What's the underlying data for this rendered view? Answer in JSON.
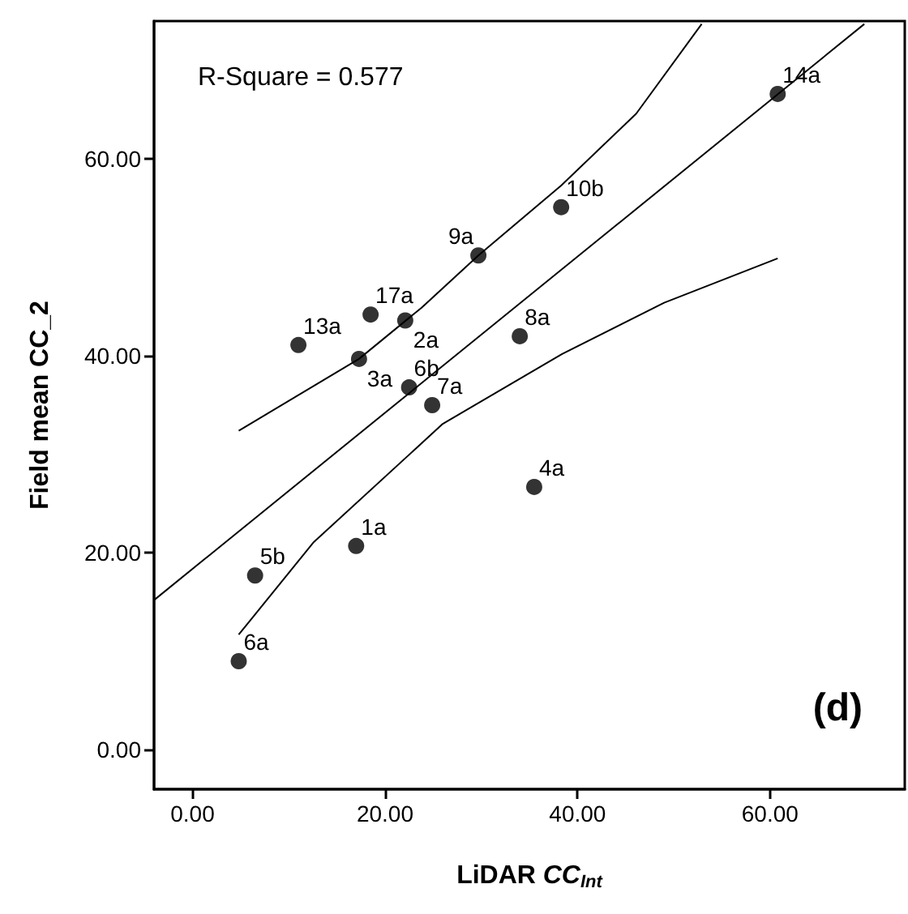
{
  "chart_data": {
    "type": "scatter",
    "xlabel": "LiDAR CC$_{Int}$",
    "ylabel": "Field mean CC_2",
    "xlim": [
      -4,
      74
    ],
    "ylim": [
      -4,
      74
    ],
    "xticks": [
      {
        "value": 0,
        "label": "0.00"
      },
      {
        "value": 20,
        "label": "20.00"
      },
      {
        "value": 40,
        "label": "40.00"
      },
      {
        "value": 60,
        "label": "60.00"
      }
    ],
    "yticks": [
      {
        "value": 0,
        "label": "0.00"
      },
      {
        "value": 20,
        "label": "20.00"
      },
      {
        "value": 40,
        "label": "40.00"
      },
      {
        "value": 60,
        "label": "60.00"
      }
    ],
    "grid": false,
    "marker": "circle",
    "series": [
      {
        "color": "#000000",
        "x": [
          60.8,
          38.3,
          29.7,
          18.5,
          22.1,
          11.0,
          17.3,
          22.5,
          24.9,
          34.0,
          35.5,
          17.0,
          6.5,
          4.8
        ],
        "values": [
          66.6,
          55.1,
          50.2,
          44.2,
          43.6,
          41.1,
          39.7,
          36.8,
          35.0,
          42.0,
          26.7,
          20.7,
          17.7,
          9.0
        ]
      },
      {
        "type": "line",
        "color": "#000000",
        "line_style": "solid",
        "marker": "none",
        "x": [
          -4,
          69.8
        ],
        "values": [
          15.2,
          73.7
        ]
      },
      {
        "type": "line",
        "color": "#000000",
        "line_style": "solid",
        "marker": "none",
        "x": [
          4.8,
          17.3,
          23.8,
          29.7,
          38.3,
          46.1,
          52.9
        ],
        "values": [
          32.4,
          39.7,
          44.9,
          50.2,
          57.3,
          64.6,
          73.7
        ]
      },
      {
        "type": "line",
        "color": "#000000",
        "line_style": "solid",
        "marker": "none",
        "x": [
          4.8,
          12.6,
          26.0,
          38.4,
          49.0,
          60.8
        ],
        "values": [
          11.7,
          21.1,
          33.1,
          40.2,
          45.4,
          49.9
        ]
      }
    ],
    "annotations": [
      "R-Square = 0.577",
      "(d)",
      {
        "text": "14a",
        "x": 60.8,
        "y": 66.6
      },
      {
        "text": "10b",
        "x": 38.3,
        "y": 55.1
      },
      {
        "text": "9a",
        "x": 29.7,
        "y": 50.2
      },
      {
        "text": "17a",
        "x": 18.5,
        "y": 44.2
      },
      {
        "text": "2a",
        "x": 22.1,
        "y": 43.6
      },
      {
        "text": "13a",
        "x": 11.0,
        "y": 41.1
      },
      {
        "text": "3a",
        "x": 17.3,
        "y": 39.7
      },
      {
        "text": "6b",
        "x": 22.5,
        "y": 36.8
      },
      {
        "text": "7a",
        "x": 24.9,
        "y": 35.0
      },
      {
        "text": "8a",
        "x": 34.0,
        "y": 42.0
      },
      {
        "text": "4a",
        "x": 35.5,
        "y": 26.7
      },
      {
        "text": "1a",
        "x": 17.0,
        "y": 20.7
      },
      {
        "text": "5b",
        "x": 6.5,
        "y": 17.7
      },
      {
        "text": "6a",
        "x": 4.8,
        "y": 9.0
      }
    ]
  }
}
